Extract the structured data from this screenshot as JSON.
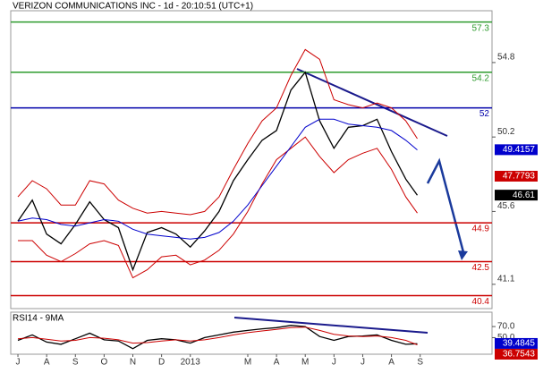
{
  "chart_data": [
    {
      "type": "line",
      "title": "VERIZON COMMUNICATIONS INC - 1d - 20:10:51 (UTC+1)",
      "x": [
        0,
        0.5,
        1,
        1.5,
        2,
        2.5,
        3,
        3.5,
        4,
        4.5,
        5,
        5.5,
        6,
        6.5,
        7,
        7.5,
        8,
        8.5,
        9,
        9.5,
        10,
        10.5,
        11,
        11.5,
        12,
        12.5,
        13,
        13.5,
        13.9
      ],
      "series": [
        {
          "color": "#000000",
          "values": [
            45.0,
            46.3,
            44.2,
            43.6,
            44.8,
            46.2,
            45.1,
            44.6,
            42.0,
            44.3,
            44.6,
            44.2,
            43.4,
            44.4,
            45.6,
            47.5,
            48.8,
            50.0,
            50.6,
            53.1,
            54.2,
            51.2,
            49.5,
            50.8,
            50.9,
            51.3,
            49.3,
            47.6,
            46.6
          ]
        },
        {
          "color": "#cc0000",
          "values": [
            46.5,
            47.5,
            47.0,
            46.0,
            46.0,
            47.5,
            47.3,
            46.3,
            45.8,
            45.5,
            45.6,
            45.5,
            45.4,
            45.6,
            46.5,
            48.2,
            49.8,
            51.2,
            52.0,
            54.0,
            55.6,
            55.0,
            52.5,
            52.2,
            52.0,
            52.3,
            52.0,
            51.2,
            50.1
          ]
        },
        {
          "color": "#cc0000",
          "values": [
            43.8,
            43.8,
            42.9,
            42.5,
            43.0,
            43.6,
            43.8,
            43.5,
            41.5,
            42.0,
            42.8,
            42.9,
            42.3,
            42.6,
            43.2,
            44.2,
            45.6,
            47.3,
            48.8,
            49.5,
            50.2,
            49.0,
            48.0,
            48.8,
            49.2,
            49.5,
            48.2,
            46.5,
            45.5
          ]
        },
        {
          "color": "#0000cc",
          "values": [
            45.0,
            45.2,
            45.1,
            44.8,
            44.7,
            44.9,
            45.1,
            45.0,
            44.5,
            44.2,
            44.1,
            44.0,
            43.9,
            44.0,
            44.3,
            45.0,
            46.0,
            47.2,
            48.4,
            49.6,
            50.8,
            51.3,
            51.3,
            51.0,
            50.9,
            50.8,
            50.6,
            50.0,
            49.4
          ]
        }
      ],
      "xlim": [
        -0.25,
        16.5
      ],
      "ylim": [
        39.6,
        58.0
      ],
      "yticks": [
        54.8,
        50.2,
        45.6,
        41.1
      ],
      "levels": [
        {
          "value": 57.3,
          "color": "#2e9b2e"
        },
        {
          "value": 54.2,
          "color": "#2e9b2e"
        },
        {
          "value": 52,
          "color": "#0000aa"
        },
        {
          "value": 44.9,
          "color": "#cc0000"
        },
        {
          "value": 42.5,
          "color": "#cc0000"
        },
        {
          "value": 40.4,
          "color": "#cc0000"
        }
      ],
      "markers": [
        {
          "value": 49.4157,
          "color": "#0000cc"
        },
        {
          "value": 47.7793,
          "color": "#cc0000"
        },
        {
          "value": 46.61,
          "color": "#000000"
        }
      ]
    },
    {
      "type": "line",
      "title": "RSI14 - 9MA",
      "x": [
        0,
        0.5,
        1,
        1.5,
        2,
        2.5,
        3,
        3.5,
        4,
        4.5,
        5,
        5.5,
        6,
        6.5,
        7,
        7.5,
        8,
        8.5,
        9,
        9.5,
        10,
        10.5,
        11,
        11.5,
        12,
        12.5,
        13,
        13.5,
        13.9
      ],
      "series": [
        {
          "color": "#000000",
          "values": [
            45,
            55,
            42,
            38,
            48,
            58,
            46,
            44,
            30,
            45,
            48,
            46,
            40,
            50,
            55,
            60,
            63,
            66,
            68,
            72,
            70,
            52,
            45,
            52,
            53,
            55,
            45,
            38,
            39
          ]
        },
        {
          "color": "#cc0000",
          "values": [
            48,
            50,
            47,
            44,
            45,
            50,
            49,
            46,
            40,
            41,
            44,
            46,
            44,
            46,
            50,
            55,
            59,
            62,
            65,
            68,
            69,
            63,
            56,
            53,
            52,
            53,
            50,
            45,
            37
          ]
        }
      ],
      "xlim": [
        -0.25,
        16.5
      ],
      "ylim": [
        20,
        96
      ],
      "yticks": [
        {
          "value": 70,
          "label": "70.0"
        },
        {
          "value": 50,
          "label": "50.0"
        }
      ],
      "xticks": [
        {
          "value": 0,
          "label": "J"
        },
        {
          "value": 1,
          "label": "A"
        },
        {
          "value": 2,
          "label": "S"
        },
        {
          "value": 3,
          "label": "O"
        },
        {
          "value": 4,
          "label": "N"
        },
        {
          "value": 5,
          "label": "D"
        },
        {
          "value": 6,
          "label": "2013"
        },
        {
          "value": 8,
          "label": "M"
        },
        {
          "value": 9,
          "label": "A"
        },
        {
          "value": 10,
          "label": "M"
        },
        {
          "value": 11,
          "label": "J"
        },
        {
          "value": 12,
          "label": "J"
        },
        {
          "value": 13,
          "label": "A"
        },
        {
          "value": 14,
          "label": "S"
        }
      ],
      "markers": [
        {
          "value": 39.4845,
          "color": "#0000cc"
        },
        {
          "value": 36.7543,
          "color": "#cc0000"
        }
      ]
    }
  ]
}
